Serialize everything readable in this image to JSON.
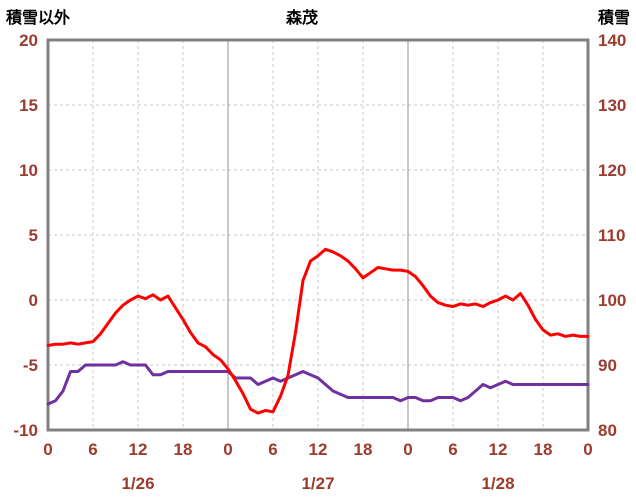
{
  "header": {
    "left_axis_title": "積雪以外",
    "chart_title": "森茂",
    "right_axis_title": "積雪"
  },
  "colors": {
    "background": "#FFFFFF",
    "title_text": "#000000",
    "tick_label": "#9C3B2E",
    "border": "#808080",
    "grid_major": "#909090",
    "grid_minor": "#C8C8C8",
    "red_series": "#FF0000",
    "purple_series": "#7030A0"
  },
  "chart_data": {
    "type": "line",
    "title": "森茂",
    "x_unit": "hour",
    "x_range": [
      0,
      72
    ],
    "x_step_hours": 1,
    "x_tick_hours": [
      0,
      6,
      12,
      18,
      24,
      30,
      36,
      42,
      48,
      54,
      60,
      66,
      72
    ],
    "x_tick_labels": [
      "0",
      "6",
      "12",
      "18",
      "0",
      "6",
      "12",
      "18",
      "0",
      "6",
      "12",
      "18",
      "0"
    ],
    "date_labels": [
      {
        "label": "1/26",
        "hour": 12
      },
      {
        "label": "1/27",
        "hour": 36
      },
      {
        "label": "1/28",
        "hour": 60
      }
    ],
    "left_axis": {
      "title": "積雪以外",
      "min": -10,
      "max": 20,
      "ticks": [
        20,
        15,
        10,
        5,
        0,
        -5,
        -10
      ]
    },
    "right_axis": {
      "title": "積雪",
      "min": 80,
      "max": 140,
      "ticks": [
        140,
        130,
        120,
        110,
        100,
        90,
        80
      ]
    },
    "grid": {
      "horizontal": "dashed",
      "vertical_minor": "dashed",
      "vertical_major": "solid"
    },
    "legend": "none",
    "series": [
      {
        "name": "積雪",
        "data_name": "sekisetsu-series-line",
        "axis": "right",
        "color": "#7030A0",
        "values": [
          84,
          84.5,
          86,
          89,
          89,
          90,
          90,
          90,
          90,
          90,
          90.5,
          90,
          90,
          90,
          88.5,
          88.5,
          89,
          89,
          89,
          89,
          89,
          89,
          89,
          89,
          89,
          88,
          88,
          88,
          87,
          87.5,
          88,
          87.5,
          88,
          88.5,
          89,
          88.5,
          88,
          87,
          86,
          85.5,
          85,
          85,
          85,
          85,
          85,
          85,
          85,
          84.5,
          85,
          85,
          84.5,
          84.5,
          85,
          85,
          85,
          84.5,
          85,
          86,
          87,
          86.5,
          87,
          87.5,
          87,
          87,
          87,
          87,
          87,
          87,
          87,
          87,
          87,
          87,
          87
        ]
      },
      {
        "name": "積雪以外",
        "data_name": "sekisetsu-igai-series-line",
        "axis": "left",
        "color": "#FF0000",
        "values": [
          -3.5,
          -3.4,
          -3.4,
          -3.3,
          -3.4,
          -3.3,
          -3.2,
          -2.6,
          -1.8,
          -1.0,
          -0.4,
          0.0,
          0.3,
          0.1,
          0.4,
          0.0,
          0.3,
          -0.6,
          -1.5,
          -2.5,
          -3.3,
          -3.6,
          -4.2,
          -4.6,
          -5.3,
          -6.2,
          -7.2,
          -8.4,
          -8.7,
          -8.5,
          -8.6,
          -7.4,
          -5.8,
          -2.5,
          1.5,
          3.0,
          3.4,
          3.9,
          3.7,
          3.4,
          3.0,
          2.4,
          1.7,
          2.1,
          2.5,
          2.4,
          2.3,
          2.3,
          2.2,
          1.8,
          1.1,
          0.3,
          -0.2,
          -0.4,
          -0.5,
          -0.3,
          -0.4,
          -0.3,
          -0.5,
          -0.2,
          0.0,
          0.3,
          0.0,
          0.5,
          -0.4,
          -1.5,
          -2.3,
          -2.7,
          -2.6,
          -2.8,
          -2.7,
          -2.8,
          -2.8
        ]
      }
    ]
  }
}
